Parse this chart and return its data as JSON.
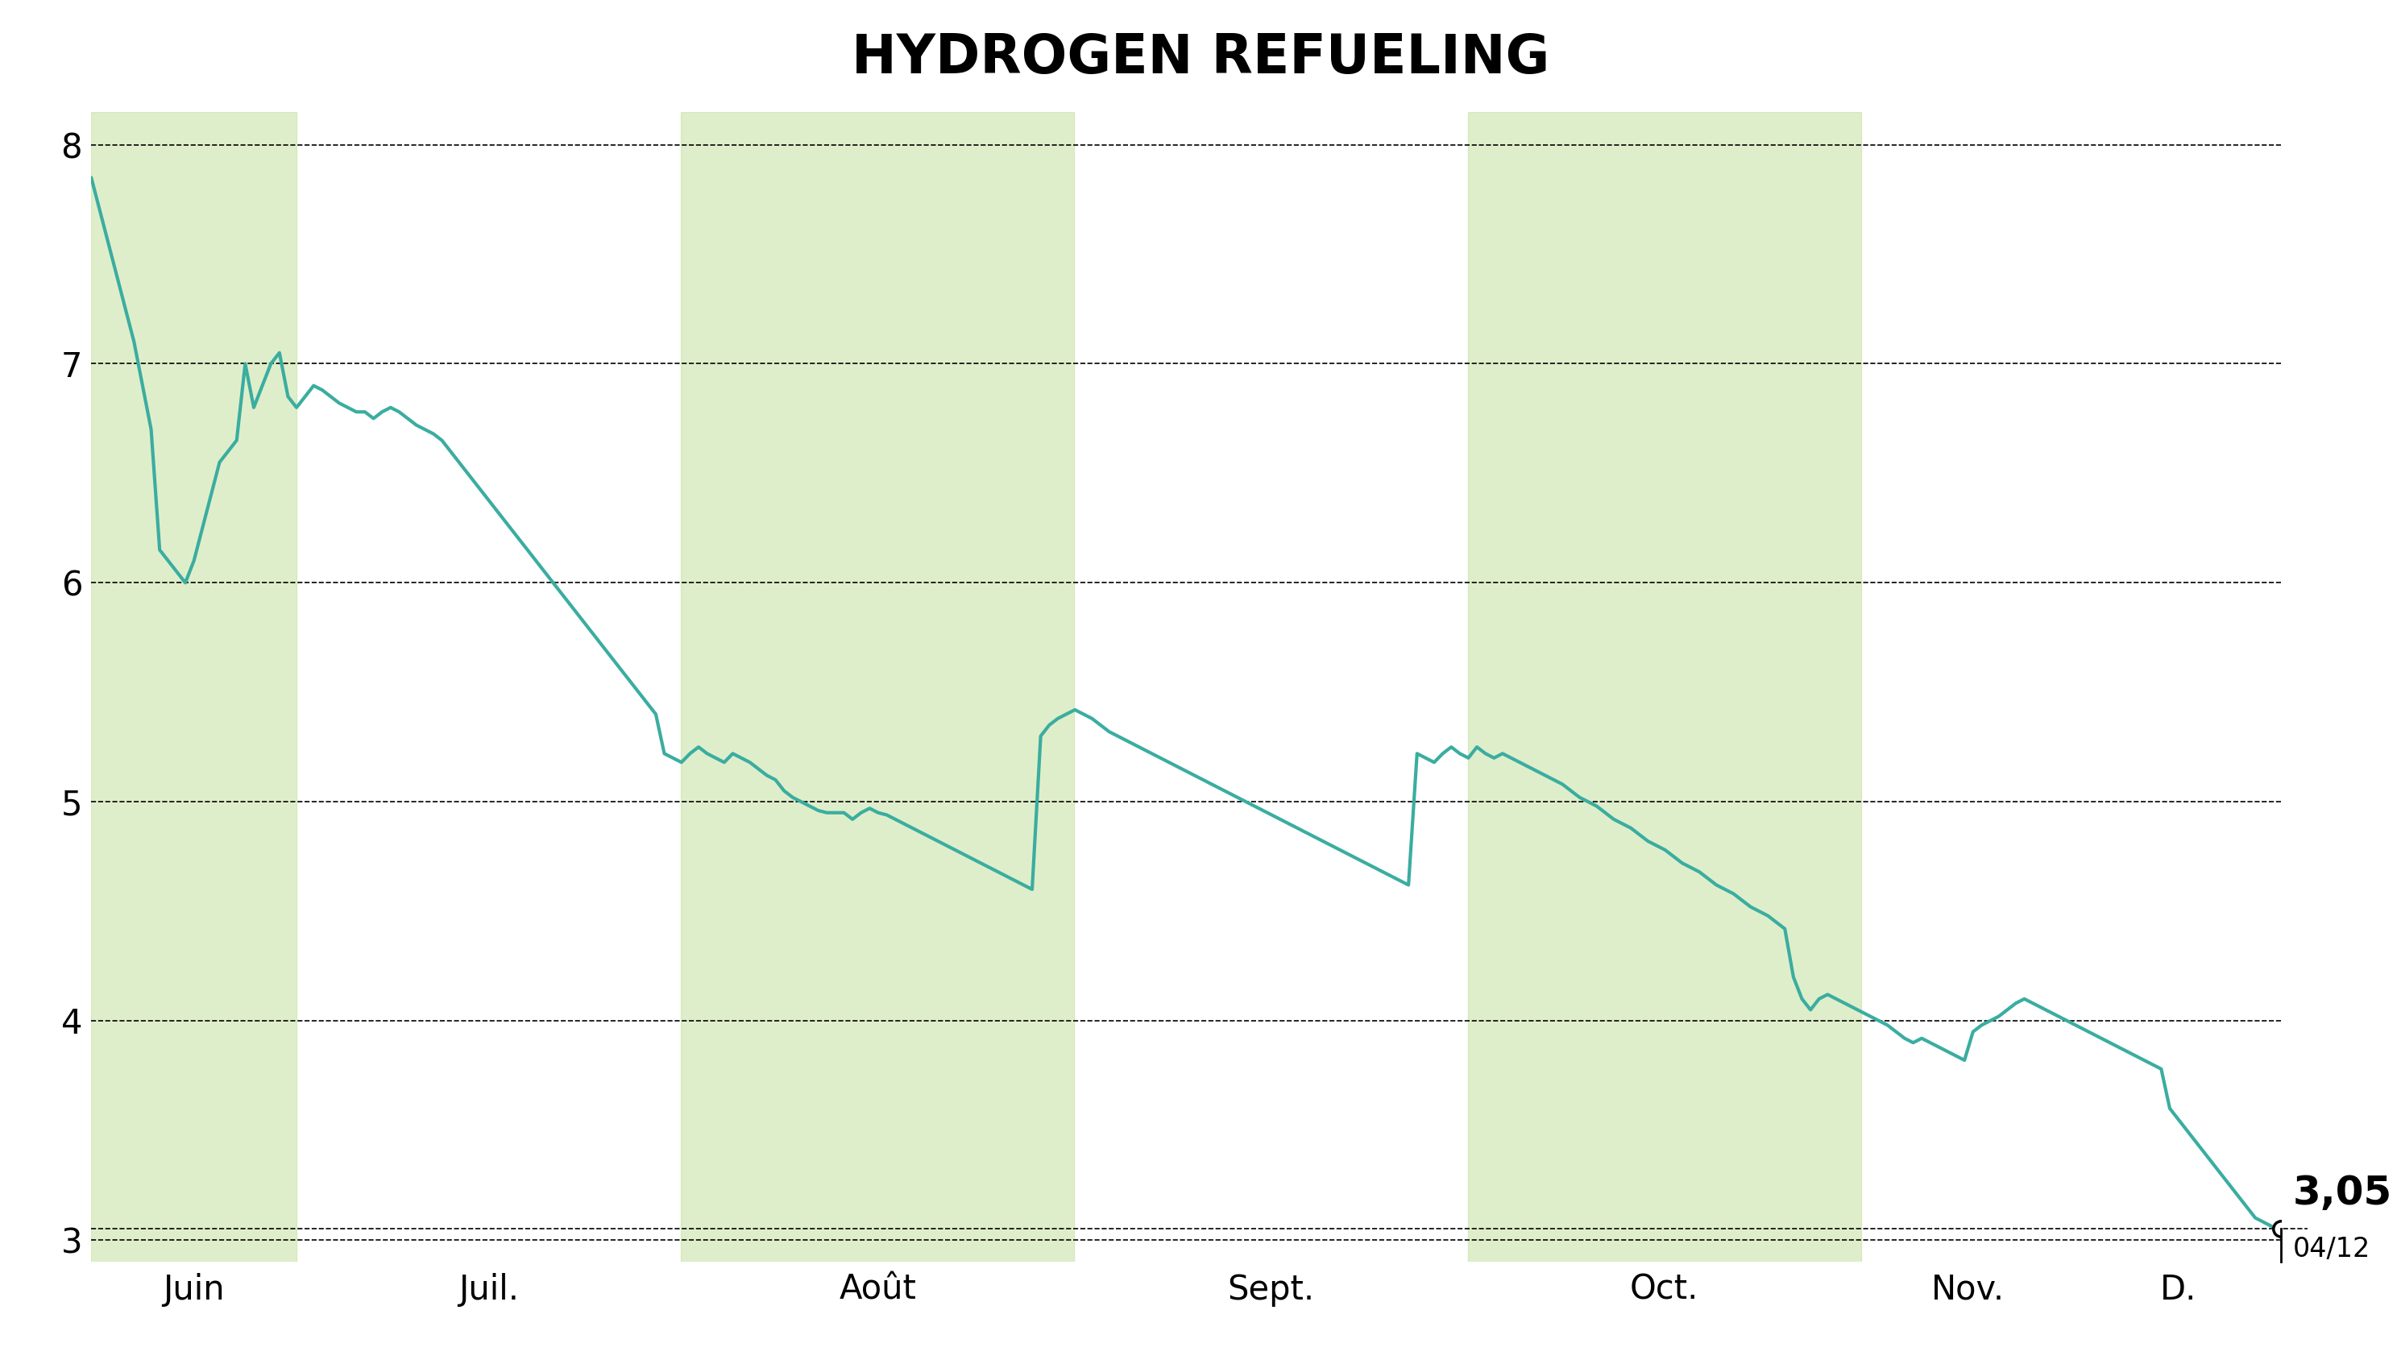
{
  "title": "HYDROGEN REFUELING",
  "title_fontsize": 48,
  "title_fontweight": "bold",
  "title_bg_color": "#c5e0a0",
  "background_color": "#ffffff",
  "line_color": "#3aada0",
  "line_width": 3.0,
  "grid_color": "#000000",
  "grid_linestyle": "--",
  "grid_linewidth": 1.2,
  "ylim": [
    2.9,
    8.15
  ],
  "yticks": [
    3,
    4,
    5,
    6,
    7,
    8
  ],
  "ytick_fontsize": 30,
  "xtick_fontsize": 30,
  "xlabel_months": [
    "Juin",
    "Juil.",
    "Août",
    "Sept.",
    "Oct.",
    "Nov.",
    "D."
  ],
  "last_price": "3,05",
  "last_date": "04/12",
  "last_price_fontsize": 36,
  "last_date_fontsize": 24,
  "end_marker_color": "#ffffff",
  "end_marker_edge_color": "#000000",
  "shaded_color": "#c5e0a0",
  "shaded_alpha": 0.55,
  "month_boundaries": [
    0,
    23,
    66,
    110,
    154,
    198,
    222,
    245
  ],
  "shaded_month_indices": [
    0,
    2,
    4
  ],
  "prices": [
    7.85,
    7.7,
    7.55,
    7.4,
    7.25,
    7.1,
    6.9,
    6.7,
    6.15,
    6.1,
    6.05,
    6.0,
    6.1,
    6.25,
    6.4,
    6.55,
    6.6,
    6.65,
    7.0,
    6.8,
    6.9,
    7.0,
    7.05,
    6.85,
    6.8,
    6.85,
    6.9,
    6.88,
    6.85,
    6.82,
    6.8,
    6.78,
    6.78,
    6.75,
    6.78,
    6.8,
    6.78,
    6.75,
    6.72,
    6.7,
    6.68,
    6.65,
    6.6,
    6.55,
    6.5,
    6.45,
    6.4,
    6.35,
    6.3,
    6.25,
    6.2,
    6.15,
    6.1,
    6.05,
    6.0,
    5.95,
    5.9,
    5.85,
    5.8,
    5.75,
    5.7,
    5.65,
    5.6,
    5.55,
    5.5,
    5.45,
    5.4,
    5.22,
    5.2,
    5.18,
    5.22,
    5.25,
    5.22,
    5.2,
    5.18,
    5.22,
    5.2,
    5.18,
    5.15,
    5.12,
    5.1,
    5.05,
    5.02,
    5.0,
    4.98,
    4.96,
    4.95,
    4.95,
    4.95,
    4.92,
    4.95,
    4.97,
    4.95,
    4.94,
    4.92,
    4.9,
    4.88,
    4.86,
    4.84,
    4.82,
    4.8,
    4.78,
    4.76,
    4.74,
    4.72,
    4.7,
    4.68,
    4.66,
    4.64,
    4.62,
    4.6,
    5.3,
    5.35,
    5.38,
    5.4,
    5.42,
    5.4,
    5.38,
    5.35,
    5.32,
    5.3,
    5.28,
    5.26,
    5.24,
    5.22,
    5.2,
    5.18,
    5.16,
    5.14,
    5.12,
    5.1,
    5.08,
    5.06,
    5.04,
    5.02,
    5.0,
    4.98,
    4.96,
    4.94,
    4.92,
    4.9,
    4.88,
    4.86,
    4.84,
    4.82,
    4.8,
    4.78,
    4.76,
    4.74,
    4.72,
    4.7,
    4.68,
    4.66,
    4.64,
    4.62,
    5.22,
    5.2,
    5.18,
    5.22,
    5.25,
    5.22,
    5.2,
    5.25,
    5.22,
    5.2,
    5.22,
    5.2,
    5.18,
    5.16,
    5.14,
    5.12,
    5.1,
    5.08,
    5.05,
    5.02,
    5.0,
    4.98,
    4.95,
    4.92,
    4.9,
    4.88,
    4.85,
    4.82,
    4.8,
    4.78,
    4.75,
    4.72,
    4.7,
    4.68,
    4.65,
    4.62,
    4.6,
    4.58,
    4.55,
    4.52,
    4.5,
    4.48,
    4.45,
    4.42,
    4.2,
    4.1,
    4.05,
    4.1,
    4.12,
    4.1,
    4.08,
    4.06,
    4.04,
    4.02,
    4.0,
    3.98,
    3.95,
    3.92,
    3.9,
    3.92,
    3.9,
    3.88,
    3.86,
    3.84,
    3.82,
    3.95,
    3.98,
    4.0,
    4.02,
    4.05,
    4.08,
    4.1,
    4.08,
    4.06,
    4.04,
    4.02,
    4.0,
    3.98,
    3.96,
    3.94,
    3.92,
    3.9,
    3.88,
    3.86,
    3.84,
    3.82,
    3.8,
    3.78,
    3.6,
    3.55,
    3.5,
    3.45,
    3.4,
    3.35,
    3.3,
    3.25,
    3.2,
    3.15,
    3.1,
    3.08,
    3.06,
    3.05
  ]
}
